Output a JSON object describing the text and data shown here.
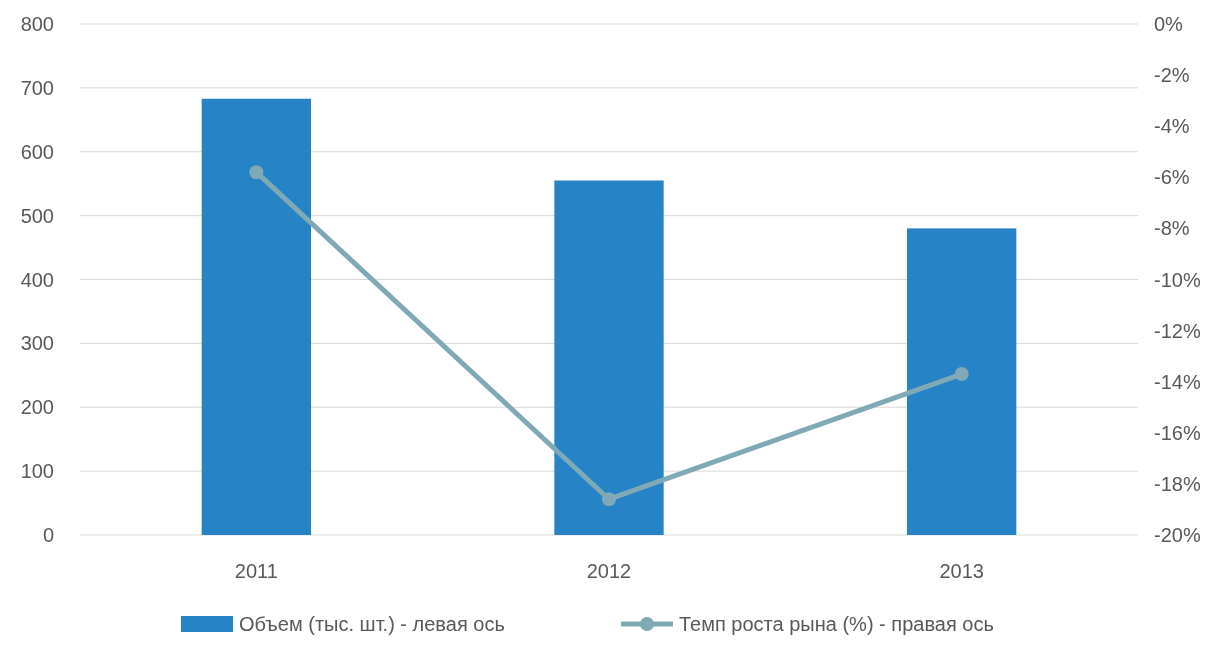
{
  "chart_data": {
    "type": "bar",
    "categories": [
      "2011",
      "2012",
      "2013"
    ],
    "series": [
      {
        "name": "Объем  (тыс. шт.) - левая ось",
        "color": "#2683c6",
        "values": [
          683,
          555,
          480
        ]
      },
      {
        "name": "Темп роста рына (%) - правая  ось",
        "type": "line",
        "axis": "y2",
        "color": "#7fa9b5",
        "values": [
          -5.8,
          -18.6,
          -13.7
        ]
      }
    ],
    "ylim": [
      0,
      800
    ],
    "yticks": [
      0,
      100,
      200,
      300,
      400,
      500,
      600,
      700,
      800
    ],
    "y2lim": [
      -20,
      0
    ],
    "y2ticks": [
      {
        "value": -20,
        "label": "-20%"
      },
      {
        "value": -18,
        "label": "-18%"
      },
      {
        "value": -16,
        "label": "-16%"
      },
      {
        "value": -14,
        "label": "-14%"
      },
      {
        "value": -12,
        "label": "-12%"
      },
      {
        "value": -10,
        "label": "-10%"
      },
      {
        "value": -8,
        "label": "-8%"
      },
      {
        "value": -6,
        "label": "-6%"
      },
      {
        "value": -4,
        "label": "-4%"
      },
      {
        "value": -2,
        "label": "-2%"
      },
      {
        "value": 0,
        "label": "0%"
      }
    ],
    "grid": "y",
    "legend": "bottom",
    "marker": "circle"
  }
}
